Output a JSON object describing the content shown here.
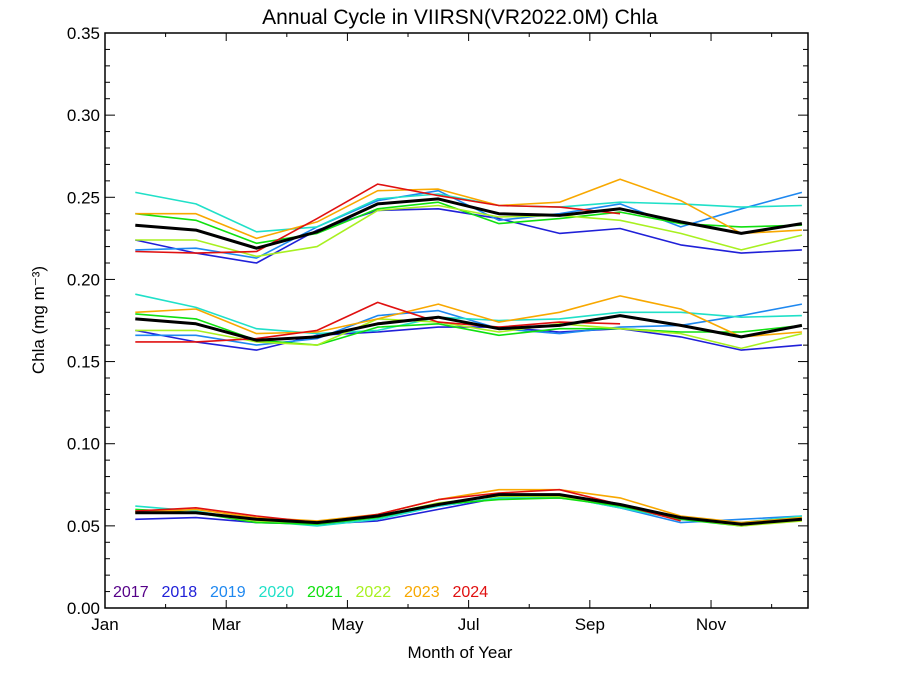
{
  "chart_data": {
    "type": "line",
    "title": "Annual Cycle in VIIRSN(VR2022.0M) Chla",
    "xlabel": "Month of Year",
    "ylabel": "Chla (mg m⁻³)",
    "xlim": [
      1,
      12.6
    ],
    "ylim": [
      0.0,
      0.35
    ],
    "x": [
      1.5,
      2.5,
      3.5,
      4.5,
      5.5,
      6.5,
      7.5,
      8.5,
      9.5,
      10.5,
      11.5,
      12.5
    ],
    "x_ticks": [
      {
        "value": 1,
        "label": "Jan"
      },
      {
        "value": 3,
        "label": "Mar"
      },
      {
        "value": 5,
        "label": "May"
      },
      {
        "value": 7,
        "label": "Jul"
      },
      {
        "value": 9,
        "label": "Sep"
      },
      {
        "value": 11,
        "label": "Nov"
      }
    ],
    "y_ticks": [
      {
        "value": 0.0,
        "label": "0.00"
      },
      {
        "value": 0.05,
        "label": "0.05"
      },
      {
        "value": 0.1,
        "label": "0.10"
      },
      {
        "value": 0.15,
        "label": "0.15"
      },
      {
        "value": 0.2,
        "label": "0.20"
      },
      {
        "value": 0.25,
        "label": "0.25"
      },
      {
        "value": 0.3,
        "label": "0.30"
      },
      {
        "value": 0.35,
        "label": "0.35"
      }
    ],
    "grid": false,
    "legend_position": "bottom-left inside",
    "series": [
      {
        "name": "2017",
        "color": "#550088",
        "group": "top",
        "values": [
          null,
          null,
          null,
          null,
          null,
          null,
          null,
          null,
          null,
          null,
          null,
          null
        ]
      },
      {
        "name": "2018",
        "color": "#2020d8",
        "group": "top",
        "values": [
          0.224,
          0.216,
          0.21,
          0.23,
          0.242,
          0.243,
          0.237,
          0.228,
          0.231,
          0.221,
          0.216,
          0.218
        ]
      },
      {
        "name": "2019",
        "color": "#1e88f0",
        "group": "top",
        "values": [
          0.218,
          0.219,
          0.213,
          0.232,
          0.248,
          0.254,
          0.236,
          0.24,
          0.246,
          0.232,
          0.243,
          0.253
        ]
      },
      {
        "name": "2020",
        "color": "#20e0c8",
        "group": "top",
        "values": [
          0.253,
          0.246,
          0.229,
          0.232,
          0.249,
          0.252,
          0.245,
          0.244,
          0.247,
          0.246,
          0.244,
          0.245
        ]
      },
      {
        "name": "2021",
        "color": "#10e010",
        "group": "top",
        "values": [
          0.24,
          0.236,
          0.222,
          0.228,
          0.243,
          0.247,
          0.234,
          0.237,
          0.241,
          0.234,
          0.232,
          0.233
        ]
      },
      {
        "name": "2022",
        "color": "#a8f020",
        "group": "top",
        "values": [
          0.224,
          0.224,
          0.214,
          0.22,
          0.242,
          0.245,
          0.238,
          0.239,
          0.236,
          0.228,
          0.218,
          0.227
        ]
      },
      {
        "name": "2023",
        "color": "#f8a800",
        "group": "top",
        "values": [
          0.24,
          0.24,
          0.225,
          0.235,
          0.254,
          0.255,
          0.245,
          0.247,
          0.261,
          0.248,
          0.228,
          0.23
        ]
      },
      {
        "name": "2024",
        "color": "#e01010",
        "group": "top",
        "values": [
          0.217,
          0.216,
          0.217,
          0.237,
          0.258,
          0.251,
          0.245,
          0.244,
          0.24,
          null,
          null,
          null
        ]
      },
      {
        "name": "",
        "color": "#000000",
        "width": 3,
        "group": "top",
        "values": [
          0.233,
          0.23,
          0.219,
          0.229,
          0.246,
          0.249,
          0.24,
          0.239,
          0.243,
          0.235,
          0.228,
          0.234
        ]
      },
      {
        "name": "2018",
        "color": "#2020d8",
        "group": "middle",
        "values": [
          0.169,
          0.162,
          0.157,
          0.166,
          0.168,
          0.171,
          0.171,
          0.168,
          0.17,
          0.165,
          0.157,
          0.16
        ]
      },
      {
        "name": "2019",
        "color": "#1e88f0",
        "group": "middle",
        "values": [
          0.166,
          0.166,
          0.16,
          0.164,
          0.178,
          0.181,
          0.17,
          0.167,
          0.171,
          0.172,
          0.178,
          0.185
        ]
      },
      {
        "name": "2020",
        "color": "#20e0c8",
        "group": "middle",
        "values": [
          0.191,
          0.183,
          0.17,
          0.167,
          0.169,
          0.177,
          0.175,
          0.176,
          0.18,
          0.18,
          0.177,
          0.178
        ]
      },
      {
        "name": "2021",
        "color": "#10e010",
        "group": "middle",
        "values": [
          0.179,
          0.176,
          0.163,
          0.16,
          0.171,
          0.173,
          0.166,
          0.17,
          0.17,
          0.168,
          0.168,
          0.172
        ]
      },
      {
        "name": "2022",
        "color": "#a8f020",
        "group": "middle",
        "values": [
          0.169,
          0.169,
          0.162,
          0.16,
          0.176,
          0.174,
          0.168,
          0.173,
          0.17,
          0.167,
          0.158,
          0.167
        ]
      },
      {
        "name": "2023",
        "color": "#f8a800",
        "group": "middle",
        "values": [
          0.18,
          0.182,
          0.167,
          0.168,
          0.176,
          0.185,
          0.174,
          0.18,
          0.19,
          0.182,
          0.165,
          0.168
        ]
      },
      {
        "name": "2024",
        "color": "#e01010",
        "group": "middle",
        "values": [
          0.162,
          0.162,
          0.164,
          0.169,
          0.186,
          0.174,
          0.171,
          0.174,
          0.173,
          null,
          null,
          null
        ]
      },
      {
        "name": "",
        "color": "#000000",
        "width": 3,
        "group": "middle",
        "values": [
          0.176,
          0.173,
          0.163,
          0.165,
          0.173,
          0.177,
          0.17,
          0.172,
          0.178,
          0.172,
          0.165,
          0.172
        ]
      },
      {
        "name": "2018",
        "color": "#2020d8",
        "group": "bottom",
        "values": [
          0.054,
          0.055,
          0.052,
          0.051,
          0.053,
          0.06,
          0.067,
          0.067,
          0.063,
          0.054,
          0.051,
          0.054
        ]
      },
      {
        "name": "2019",
        "color": "#1e88f0",
        "group": "bottom",
        "values": [
          0.059,
          0.058,
          0.054,
          0.051,
          0.055,
          0.062,
          0.067,
          0.068,
          0.061,
          0.052,
          0.054,
          0.056
        ]
      },
      {
        "name": "2020",
        "color": "#20e0c8",
        "group": "bottom",
        "values": [
          0.062,
          0.059,
          0.053,
          0.05,
          0.054,
          0.062,
          0.067,
          0.068,
          0.061,
          0.054,
          0.052,
          0.056
        ]
      },
      {
        "name": "2021",
        "color": "#10e010",
        "group": "bottom",
        "values": [
          0.06,
          0.058,
          0.052,
          0.051,
          0.055,
          0.063,
          0.066,
          0.067,
          0.062,
          0.054,
          0.05,
          0.054
        ]
      },
      {
        "name": "2022",
        "color": "#a8f020",
        "group": "bottom",
        "values": [
          0.058,
          0.058,
          0.053,
          0.052,
          0.056,
          0.064,
          0.068,
          0.068,
          0.063,
          0.055,
          0.05,
          0.053
        ]
      },
      {
        "name": "2023",
        "color": "#f8a800",
        "group": "bottom",
        "values": [
          0.058,
          0.06,
          0.055,
          0.053,
          0.057,
          0.066,
          0.072,
          0.072,
          0.067,
          0.056,
          0.052,
          0.055
        ]
      },
      {
        "name": "2024",
        "color": "#e01010",
        "group": "bottom",
        "values": [
          0.059,
          0.061,
          0.056,
          0.052,
          0.057,
          0.066,
          0.07,
          0.072,
          0.063,
          0.053,
          null,
          null
        ]
      },
      {
        "name": "",
        "color": "#000000",
        "width": 3,
        "group": "bottom",
        "values": [
          0.058,
          0.058,
          0.054,
          0.052,
          0.056,
          0.063,
          0.069,
          0.069,
          0.063,
          0.055,
          0.051,
          0.054
        ]
      }
    ],
    "legend": [
      {
        "label": "2017",
        "color": "#550088"
      },
      {
        "label": "2018",
        "color": "#2020d8"
      },
      {
        "label": "2019",
        "color": "#1e88f0"
      },
      {
        "label": "2020",
        "color": "#20e0c8"
      },
      {
        "label": "2021",
        "color": "#10e010"
      },
      {
        "label": "2022",
        "color": "#a8f020"
      },
      {
        "label": "2023",
        "color": "#f8a800"
      },
      {
        "label": "2024",
        "color": "#e01010"
      }
    ]
  }
}
